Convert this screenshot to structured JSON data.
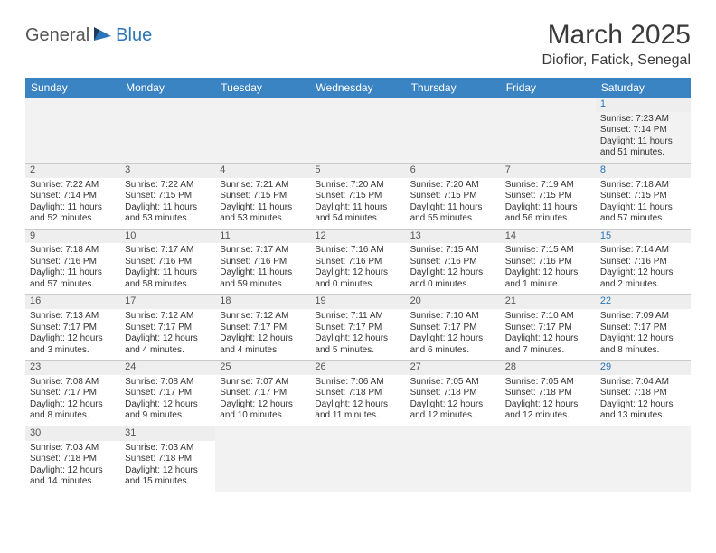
{
  "logo": {
    "text_a": "General",
    "text_b": "Blue"
  },
  "title": "March 2025",
  "location": "Diofior, Fatick, Senegal",
  "weekdays": [
    "Sunday",
    "Monday",
    "Tuesday",
    "Wednesday",
    "Thursday",
    "Friday",
    "Saturday"
  ],
  "colors": {
    "header_bg": "#3b84c4",
    "accent": "#2a74b8",
    "text": "#333333"
  },
  "weeks": [
    [
      null,
      null,
      null,
      null,
      null,
      null,
      {
        "d": "1",
        "sr": "7:23 AM",
        "ss": "7:14 PM",
        "dl": "11 hours and 51 minutes."
      }
    ],
    [
      {
        "d": "2",
        "sr": "7:22 AM",
        "ss": "7:14 PM",
        "dl": "11 hours and 52 minutes."
      },
      {
        "d": "3",
        "sr": "7:22 AM",
        "ss": "7:15 PM",
        "dl": "11 hours and 53 minutes."
      },
      {
        "d": "4",
        "sr": "7:21 AM",
        "ss": "7:15 PM",
        "dl": "11 hours and 53 minutes."
      },
      {
        "d": "5",
        "sr": "7:20 AM",
        "ss": "7:15 PM",
        "dl": "11 hours and 54 minutes."
      },
      {
        "d": "6",
        "sr": "7:20 AM",
        "ss": "7:15 PM",
        "dl": "11 hours and 55 minutes."
      },
      {
        "d": "7",
        "sr": "7:19 AM",
        "ss": "7:15 PM",
        "dl": "11 hours and 56 minutes."
      },
      {
        "d": "8",
        "sr": "7:18 AM",
        "ss": "7:15 PM",
        "dl": "11 hours and 57 minutes."
      }
    ],
    [
      {
        "d": "9",
        "sr": "7:18 AM",
        "ss": "7:16 PM",
        "dl": "11 hours and 57 minutes."
      },
      {
        "d": "10",
        "sr": "7:17 AM",
        "ss": "7:16 PM",
        "dl": "11 hours and 58 minutes."
      },
      {
        "d": "11",
        "sr": "7:17 AM",
        "ss": "7:16 PM",
        "dl": "11 hours and 59 minutes."
      },
      {
        "d": "12",
        "sr": "7:16 AM",
        "ss": "7:16 PM",
        "dl": "12 hours and 0 minutes."
      },
      {
        "d": "13",
        "sr": "7:15 AM",
        "ss": "7:16 PM",
        "dl": "12 hours and 0 minutes."
      },
      {
        "d": "14",
        "sr": "7:15 AM",
        "ss": "7:16 PM",
        "dl": "12 hours and 1 minute."
      },
      {
        "d": "15",
        "sr": "7:14 AM",
        "ss": "7:16 PM",
        "dl": "12 hours and 2 minutes."
      }
    ],
    [
      {
        "d": "16",
        "sr": "7:13 AM",
        "ss": "7:17 PM",
        "dl": "12 hours and 3 minutes."
      },
      {
        "d": "17",
        "sr": "7:12 AM",
        "ss": "7:17 PM",
        "dl": "12 hours and 4 minutes."
      },
      {
        "d": "18",
        "sr": "7:12 AM",
        "ss": "7:17 PM",
        "dl": "12 hours and 4 minutes."
      },
      {
        "d": "19",
        "sr": "7:11 AM",
        "ss": "7:17 PM",
        "dl": "12 hours and 5 minutes."
      },
      {
        "d": "20",
        "sr": "7:10 AM",
        "ss": "7:17 PM",
        "dl": "12 hours and 6 minutes."
      },
      {
        "d": "21",
        "sr": "7:10 AM",
        "ss": "7:17 PM",
        "dl": "12 hours and 7 minutes."
      },
      {
        "d": "22",
        "sr": "7:09 AM",
        "ss": "7:17 PM",
        "dl": "12 hours and 8 minutes."
      }
    ],
    [
      {
        "d": "23",
        "sr": "7:08 AM",
        "ss": "7:17 PM",
        "dl": "12 hours and 8 minutes."
      },
      {
        "d": "24",
        "sr": "7:08 AM",
        "ss": "7:17 PM",
        "dl": "12 hours and 9 minutes."
      },
      {
        "d": "25",
        "sr": "7:07 AM",
        "ss": "7:17 PM",
        "dl": "12 hours and 10 minutes."
      },
      {
        "d": "26",
        "sr": "7:06 AM",
        "ss": "7:18 PM",
        "dl": "12 hours and 11 minutes."
      },
      {
        "d": "27",
        "sr": "7:05 AM",
        "ss": "7:18 PM",
        "dl": "12 hours and 12 minutes."
      },
      {
        "d": "28",
        "sr": "7:05 AM",
        "ss": "7:18 PM",
        "dl": "12 hours and 12 minutes."
      },
      {
        "d": "29",
        "sr": "7:04 AM",
        "ss": "7:18 PM",
        "dl": "12 hours and 13 minutes."
      }
    ],
    [
      {
        "d": "30",
        "sr": "7:03 AM",
        "ss": "7:18 PM",
        "dl": "12 hours and 14 minutes."
      },
      {
        "d": "31",
        "sr": "7:03 AM",
        "ss": "7:18 PM",
        "dl": "12 hours and 15 minutes."
      },
      null,
      null,
      null,
      null,
      null
    ]
  ],
  "labels": {
    "sunrise": "Sunrise:",
    "sunset": "Sunset:",
    "daylight": "Daylight:"
  }
}
